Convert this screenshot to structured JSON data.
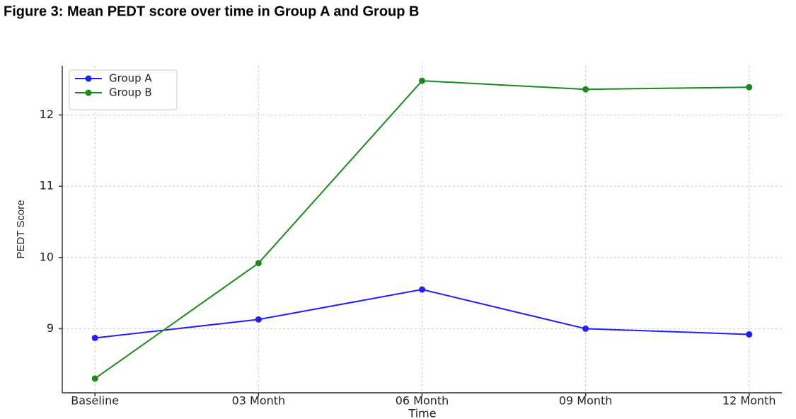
{
  "chart_data": {
    "type": "line",
    "title": "Figure 3: Mean PEDT score over time in Group A and Group B",
    "xlabel": "Time",
    "ylabel": "PEDT Score",
    "categories": [
      "Baseline",
      "03 Month",
      "06 Month",
      "09 Month",
      "12 Month"
    ],
    "series": [
      {
        "name": "Group A",
        "color": "#1f1fff",
        "values": [
          8.87,
          9.13,
          9.55,
          9.0,
          8.92
        ]
      },
      {
        "name": "Group B",
        "color": "#1a8a1a",
        "values": [
          8.3,
          9.92,
          12.48,
          12.36,
          12.39
        ]
      }
    ],
    "ylim": [
      8.1,
      12.69
    ],
    "yticks": [
      9,
      10,
      11,
      12
    ],
    "grid": true,
    "legend": "upper left"
  }
}
